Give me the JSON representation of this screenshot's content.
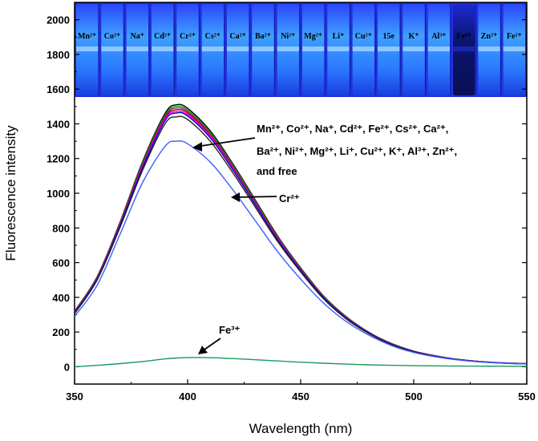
{
  "chart_data": {
    "type": "line",
    "xlabel": "Wavelength (nm)",
    "ylabel": "Fluorescence intensity",
    "xlim": [
      350,
      550
    ],
    "ylim": [
      -100,
      2100
    ],
    "xticks": [
      350,
      400,
      450,
      500,
      550
    ],
    "yticks": [
      0,
      200,
      400,
      600,
      800,
      1000,
      1200,
      1400,
      1600,
      1800,
      2000
    ],
    "x": [
      350,
      360,
      370,
      380,
      390,
      395,
      400,
      410,
      420,
      430,
      440,
      450,
      460,
      470,
      480,
      490,
      500,
      510,
      520,
      530,
      540,
      550
    ],
    "series": [
      {
        "name": "Mn2+",
        "color": "#000000",
        "values": [
          320,
          520,
          830,
          1180,
          1460,
          1510,
          1490,
          1360,
          1170,
          960,
          750,
          570,
          410,
          290,
          200,
          135,
          90,
          62,
          42,
          30,
          22,
          18
        ]
      },
      {
        "name": "Co2+",
        "color": "#00a000",
        "values": [
          318,
          517,
          826,
          1172,
          1450,
          1500,
          1480,
          1352,
          1163,
          954,
          745,
          566,
          408,
          288,
          199,
          134,
          89,
          61,
          42,
          30,
          22,
          18
        ]
      },
      {
        "name": "Na+",
        "color": "#7a2a7a",
        "values": [
          316,
          514,
          822,
          1165,
          1442,
          1490,
          1471,
          1344,
          1156,
          948,
          741,
          563,
          405,
          286,
          198,
          133,
          88,
          61,
          41,
          29,
          21,
          17
        ]
      },
      {
        "name": "Cd2+",
        "color": "#c00000",
        "values": [
          314,
          511,
          818,
          1158,
          1434,
          1480,
          1462,
          1336,
          1149,
          943,
          737,
          560,
          403,
          284,
          197,
          132,
          88,
          60,
          41,
          29,
          21,
          17
        ]
      },
      {
        "name": "Fe2+",
        "color": "#ff00ff",
        "values": [
          312,
          508,
          814,
          1151,
          1426,
          1470,
          1453,
          1328,
          1142,
          937,
          732,
          557,
          401,
          283,
          196,
          131,
          87,
          60,
          41,
          29,
          21,
          17
        ]
      },
      {
        "name": "Cs2+",
        "color": "#0000cc",
        "values": [
          310,
          505,
          810,
          1144,
          1418,
          1462,
          1445,
          1320,
          1135,
          932,
          728,
          554,
          399,
          281,
          195,
          130,
          87,
          59,
          40,
          28,
          21,
          17
        ]
      },
      {
        "name": "free",
        "color": "#222222",
        "values": [
          305,
          500,
          800,
          1130,
          1400,
          1440,
          1425,
          1300,
          1118,
          918,
          718,
          546,
          393,
          277,
          192,
          128,
          85,
          58,
          40,
          28,
          20,
          16
        ]
      },
      {
        "name": "Cr2+",
        "color": "#3a5fff",
        "values": [
          290,
          470,
          760,
          1060,
          1270,
          1300,
          1285,
          1180,
          1020,
          840,
          660,
          505,
          368,
          262,
          183,
          123,
          82,
          56,
          38,
          27,
          20,
          16
        ]
      },
      {
        "name": "Fe3+",
        "color": "#1a9a5a",
        "values": [
          0,
          8,
          18,
          30,
          45,
          50,
          53,
          52,
          47,
          40,
          33,
          26,
          20,
          15,
          11,
          8,
          6,
          5,
          4,
          3,
          3,
          2
        ]
      }
    ],
    "annotations": [
      {
        "id": "group",
        "lines": [
          "Mn²⁺, Co²⁺, Na⁺, Cd²⁺, Fe²⁺, Cs²⁺, Ca²⁺,",
          "Ba²⁺, Ni²⁺, Mg²⁺, Li⁺, Cu²⁺, K⁺, Al³⁺, Zn²⁺,",
          "and free"
        ]
      },
      {
        "id": "cr",
        "text": "Cr²⁺"
      },
      {
        "id": "fe3",
        "text": "Fe³⁺"
      }
    ]
  },
  "inset": {
    "vials": [
      "Mn²⁺",
      "Co²⁺",
      "Na⁺",
      "Cd²⁺",
      "Cr²⁺",
      "Cs²⁺",
      "Ca²⁺",
      "Ba²⁺",
      "Ni²⁺",
      "Mg²⁺",
      "Li⁺",
      "Cu²⁺",
      "15e",
      "K⁺",
      "Al³⁺",
      "Fe³⁺",
      "Zn²⁺",
      "Fe²⁺"
    ],
    "glow_color": "#3f8dff",
    "quenched_vial": "Fe³⁺"
  }
}
